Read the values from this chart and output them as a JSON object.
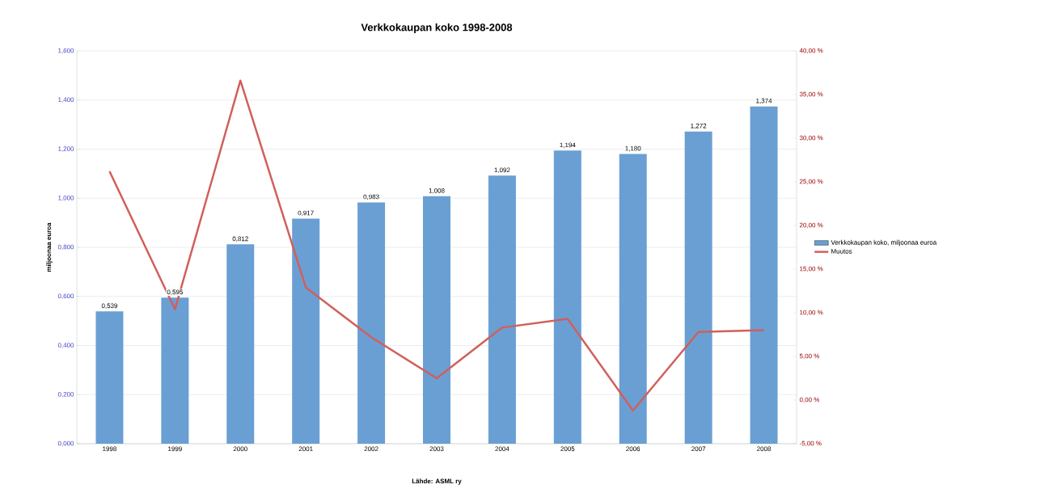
{
  "chart_data": {
    "type": "bar",
    "title": "Verkkokaupan koko 1998-2008",
    "ylabel": "miljoonaa euroa",
    "annotations": [
      "Lähde: ASML ry"
    ],
    "categories": [
      "1998",
      "1999",
      "2000",
      "2001",
      "2002",
      "2003",
      "2004",
      "2005",
      "2006",
      "2007",
      "2008"
    ],
    "series": [
      {
        "name": "Verkkokaupan koko, miljoonaa euroa",
        "color": "#6a9fd4",
        "values": [
          0.539,
          0.595,
          0.812,
          0.917,
          0.983,
          1.008,
          1.092,
          1.194,
          1.18,
          1.272,
          1.374
        ],
        "value_labels": [
          "0,539",
          "0,595",
          "0,812",
          "0,917",
          "0,983",
          "1,008",
          "1,092",
          "1,194",
          "1,180",
          "1,272",
          "1,374"
        ]
      },
      {
        "name": "Muutos",
        "type": "line",
        "axis": "y2",
        "color": "#d0605a",
        "values": [
          26.2,
          10.4,
          36.6,
          12.9,
          7.2,
          2.5,
          8.3,
          9.3,
          -1.2,
          7.8,
          8.0
        ]
      }
    ],
    "ylim": [
      0,
      1.6
    ],
    "yticks": [
      {
        "value": 0,
        "label": "0,000"
      },
      {
        "value": 0.2,
        "label": "0,200"
      },
      {
        "value": 0.4,
        "label": "0,400"
      },
      {
        "value": 0.6,
        "label": "0,600"
      },
      {
        "value": 0.8,
        "label": "0,800"
      },
      {
        "value": 1.0,
        "label": "1,000"
      },
      {
        "value": 1.2,
        "label": "1,200"
      },
      {
        "value": 1.4,
        "label": "1,400"
      },
      {
        "value": 1.6,
        "label": "1,600"
      }
    ],
    "y2lim": [
      -5,
      40
    ],
    "y2ticks": [
      {
        "value": -5,
        "label": "-5,00 %"
      },
      {
        "value": 0,
        "label": "0,00 %"
      },
      {
        "value": 5,
        "label": "5,00 %"
      },
      {
        "value": 10,
        "label": "10,00 %"
      },
      {
        "value": 15,
        "label": "15,00 %"
      },
      {
        "value": 20,
        "label": "20,00 %"
      },
      {
        "value": 25,
        "label": "25,00 %"
      },
      {
        "value": 30,
        "label": "30,00 %"
      },
      {
        "value": 35,
        "label": "35,00 %"
      },
      {
        "value": 40,
        "label": "40,00 %"
      }
    ],
    "grid": "y",
    "legend": "right"
  }
}
